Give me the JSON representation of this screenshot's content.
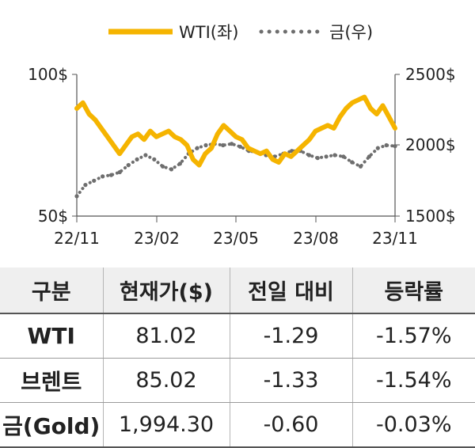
{
  "chart_data": {
    "type": "line",
    "x_ticks": [
      "22/11",
      "23/02",
      "23/05",
      "23/08",
      "23/11"
    ],
    "y_left": {
      "ticks": [
        "50$",
        "100$"
      ],
      "range": [
        50,
        100
      ]
    },
    "y_right": {
      "ticks": [
        "1500$",
        "2000$",
        "2500$"
      ],
      "range": [
        1500,
        2500
      ]
    },
    "legend_position": "top-center",
    "series": [
      {
        "name": "WTI(좌)",
        "axis": "left",
        "color": "#F5B400",
        "x": [
          "22/11",
          "22/11",
          "22/11",
          "22/11",
          "22/11",
          "22/12",
          "22/12",
          "22/12",
          "22/12",
          "22/12",
          "23/01",
          "23/01",
          "23/01",
          "23/01",
          "23/02",
          "23/02",
          "23/02",
          "23/02",
          "23/03",
          "23/03",
          "23/03",
          "23/03",
          "23/03",
          "23/04",
          "23/04",
          "23/04",
          "23/04",
          "23/05",
          "23/05",
          "23/05",
          "23/05",
          "23/06",
          "23/06",
          "23/06",
          "23/06",
          "23/07",
          "23/07",
          "23/07",
          "23/07",
          "23/08",
          "23/08",
          "23/08",
          "23/08",
          "23/09",
          "23/09",
          "23/09",
          "23/09",
          "23/10",
          "23/10",
          "23/10",
          "23/10",
          "23/11",
          "23/11"
        ],
        "values": [
          88,
          90,
          86,
          84,
          81,
          78,
          75,
          72,
          75,
          78,
          79,
          77,
          80,
          78,
          79,
          80,
          78,
          77,
          75,
          70,
          68,
          72,
          74,
          79,
          82,
          80,
          78,
          77,
          74,
          73,
          72,
          73,
          70,
          69,
          72,
          71,
          73,
          75,
          77,
          80,
          81,
          82,
          81,
          85,
          88,
          90,
          91,
          92,
          88,
          86,
          89,
          85,
          81
        ]
      },
      {
        "name": "금(우)",
        "axis": "right",
        "color": "#6e6e6e",
        "x": [
          "22/11",
          "22/11",
          "22/11",
          "22/12",
          "22/12",
          "22/12",
          "23/01",
          "23/01",
          "23/01",
          "23/02",
          "23/02",
          "23/02",
          "23/03",
          "23/03",
          "23/03",
          "23/04",
          "23/04",
          "23/04",
          "23/05",
          "23/05",
          "23/05",
          "23/06",
          "23/06",
          "23/06",
          "23/07",
          "23/07",
          "23/07",
          "23/08",
          "23/08",
          "23/08",
          "23/09",
          "23/09",
          "23/09",
          "23/10",
          "23/10",
          "23/10",
          "23/11",
          "23/11"
        ],
        "values": [
          1640,
          1720,
          1750,
          1780,
          1790,
          1810,
          1860,
          1900,
          1930,
          1900,
          1850,
          1830,
          1870,
          1940,
          1980,
          2000,
          2010,
          2000,
          2010,
          1990,
          1960,
          1950,
          1930,
          1920,
          1940,
          1960,
          1960,
          1930,
          1910,
          1920,
          1930,
          1920,
          1880,
          1850,
          1920,
          1980,
          2000,
          1994
        ]
      }
    ]
  },
  "table": {
    "headers": [
      "구분",
      "현재가($)",
      "전일 대비",
      "등락률"
    ],
    "rows": [
      [
        "WTI",
        "81.02",
        "-1.29",
        "-1.57%"
      ],
      [
        "브렌트",
        "85.02",
        "-1.33",
        "-1.54%"
      ],
      [
        "금(Gold)",
        "1,994.30",
        "-0.60",
        "-0.03%"
      ]
    ]
  }
}
